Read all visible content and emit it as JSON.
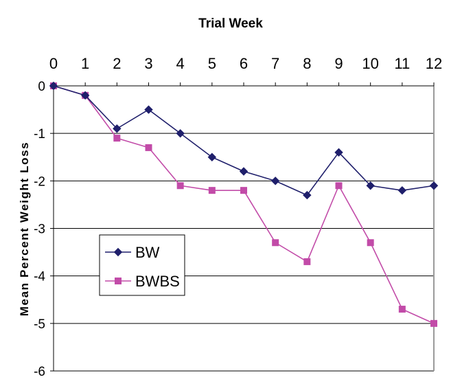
{
  "chart_data": {
    "type": "line",
    "title": "Trial Week",
    "xlabel": "",
    "ylabel": "Mean Percent Weight Loss",
    "x": [
      0,
      1,
      2,
      3,
      4,
      5,
      6,
      7,
      8,
      9,
      10,
      11,
      12
    ],
    "x_tick_labels": [
      "0",
      "1",
      "2",
      "3",
      "4",
      "5",
      "6",
      "7",
      "8",
      "9",
      "10",
      "11",
      "12"
    ],
    "x_axis_position": "top",
    "ylim": [
      -6,
      0
    ],
    "y_ticks": [
      0,
      -1,
      -2,
      -3,
      -4,
      -5,
      -6
    ],
    "y_tick_labels": [
      "0",
      "-1",
      "-2",
      "-3",
      "-4",
      "-5",
      "-6"
    ],
    "grid": "horizontal",
    "legend_position": "lower-left",
    "series": [
      {
        "name": "BW",
        "color": "#1F1F6B",
        "marker": "diamond",
        "values": [
          0,
          -0.2,
          -0.9,
          -0.5,
          -1.0,
          -1.5,
          -1.8,
          -2.0,
          -2.3,
          -1.4,
          -2.1,
          -2.2,
          -2.1
        ]
      },
      {
        "name": "BWBS",
        "color": "#C24BA8",
        "marker": "square",
        "values": [
          0,
          -0.2,
          -1.1,
          -1.3,
          -2.1,
          -2.2,
          -2.2,
          -3.3,
          -3.7,
          -2.1,
          -3.3,
          -4.7,
          -5.0
        ]
      }
    ]
  }
}
